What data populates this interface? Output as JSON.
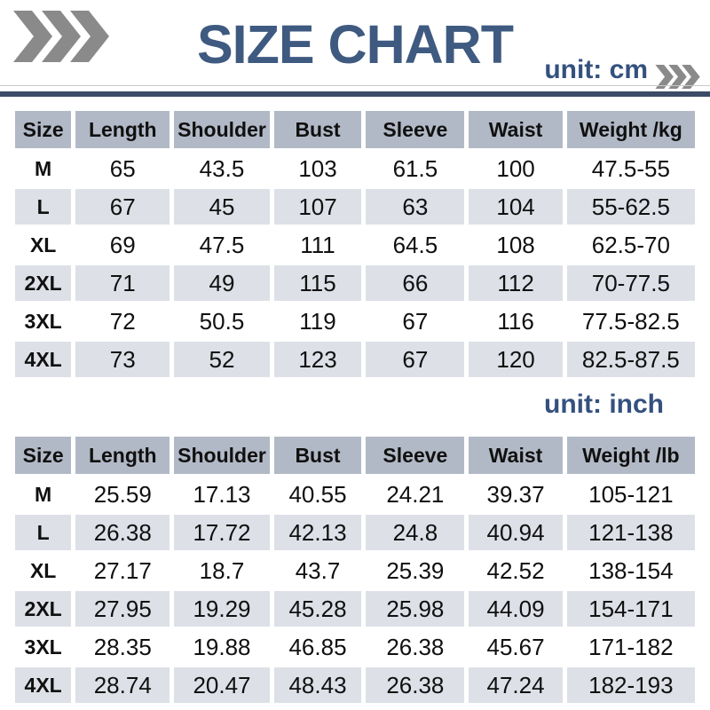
{
  "header": {
    "title": "SIZE CHART",
    "left_icon": "triple-chevron-right",
    "right_icon": "triple-chevron-right"
  },
  "colors": {
    "title_text": "#3e5a80",
    "unit_text": "#34517e",
    "divider": "#3a4c66",
    "thin_line": "#c9c9c9",
    "header_bg": "#b2b9c6",
    "alt_row_bg": "#dde0e7",
    "chevron": "#8a8a8a"
  },
  "cm_table": {
    "unit_label": "unit: cm",
    "headers": [
      "Size",
      "Length",
      "Shoulder",
      "Bust",
      "Sleeve",
      "Waist",
      "Weight /kg"
    ],
    "rows": [
      [
        "M",
        "65",
        "43.5",
        "103",
        "61.5",
        "100",
        "47.5-55"
      ],
      [
        "L",
        "67",
        "45",
        "107",
        "63",
        "104",
        "55-62.5"
      ],
      [
        "XL",
        "69",
        "47.5",
        "111",
        "64.5",
        "108",
        "62.5-70"
      ],
      [
        "2XL",
        "71",
        "49",
        "115",
        "66",
        "112",
        "70-77.5"
      ],
      [
        "3XL",
        "72",
        "50.5",
        "119",
        "67",
        "116",
        "77.5-82.5"
      ],
      [
        "4XL",
        "73",
        "52",
        "123",
        "67",
        "120",
        "82.5-87.5"
      ]
    ]
  },
  "inch_table": {
    "unit_label": "unit: inch",
    "headers": [
      "Size",
      "Length",
      "Shoulder",
      "Bust",
      "Sleeve",
      "Waist",
      "Weight /lb"
    ],
    "rows": [
      [
        "M",
        "25.59",
        "17.13",
        "40.55",
        "24.21",
        "39.37",
        "105-121"
      ],
      [
        "L",
        "26.38",
        "17.72",
        "42.13",
        "24.8",
        "40.94",
        "121-138"
      ],
      [
        "XL",
        "27.17",
        "18.7",
        "43.7",
        "25.39",
        "42.52",
        "138-154"
      ],
      [
        "2XL",
        "27.95",
        "19.29",
        "45.28",
        "25.98",
        "44.09",
        "154-171"
      ],
      [
        "3XL",
        "28.35",
        "19.88",
        "46.85",
        "26.38",
        "45.67",
        "171-182"
      ],
      [
        "4XL",
        "28.74",
        "20.47",
        "48.43",
        "26.38",
        "47.24",
        "182-193"
      ]
    ]
  },
  "chart_data": [
    {
      "type": "table",
      "title": "SIZE CHART",
      "unit": "cm",
      "columns": [
        "Size",
        "Length",
        "Shoulder",
        "Bust",
        "Sleeve",
        "Waist",
        "Weight /kg"
      ],
      "rows": [
        [
          "M",
          65,
          43.5,
          103,
          61.5,
          100,
          "47.5-55"
        ],
        [
          "L",
          67,
          45,
          107,
          63,
          104,
          "55-62.5"
        ],
        [
          "XL",
          69,
          47.5,
          111,
          64.5,
          108,
          "62.5-70"
        ],
        [
          "2XL",
          71,
          49,
          115,
          66,
          112,
          "70-77.5"
        ],
        [
          "3XL",
          72,
          50.5,
          119,
          67,
          116,
          "77.5-82.5"
        ],
        [
          "4XL",
          73,
          52,
          123,
          67,
          120,
          "82.5-87.5"
        ]
      ]
    },
    {
      "type": "table",
      "title": "SIZE CHART",
      "unit": "inch",
      "columns": [
        "Size",
        "Length",
        "Shoulder",
        "Bust",
        "Sleeve",
        "Waist",
        "Weight /lb"
      ],
      "rows": [
        [
          "M",
          25.59,
          17.13,
          40.55,
          24.21,
          39.37,
          "105-121"
        ],
        [
          "L",
          26.38,
          17.72,
          42.13,
          24.8,
          40.94,
          "121-138"
        ],
        [
          "XL",
          27.17,
          18.7,
          43.7,
          25.39,
          42.52,
          "138-154"
        ],
        [
          "2XL",
          27.95,
          19.29,
          45.28,
          25.98,
          44.09,
          "154-171"
        ],
        [
          "3XL",
          28.35,
          19.88,
          46.85,
          26.38,
          45.67,
          "171-182"
        ],
        [
          "4XL",
          28.74,
          20.47,
          48.43,
          26.38,
          47.24,
          "182-193"
        ]
      ]
    }
  ]
}
